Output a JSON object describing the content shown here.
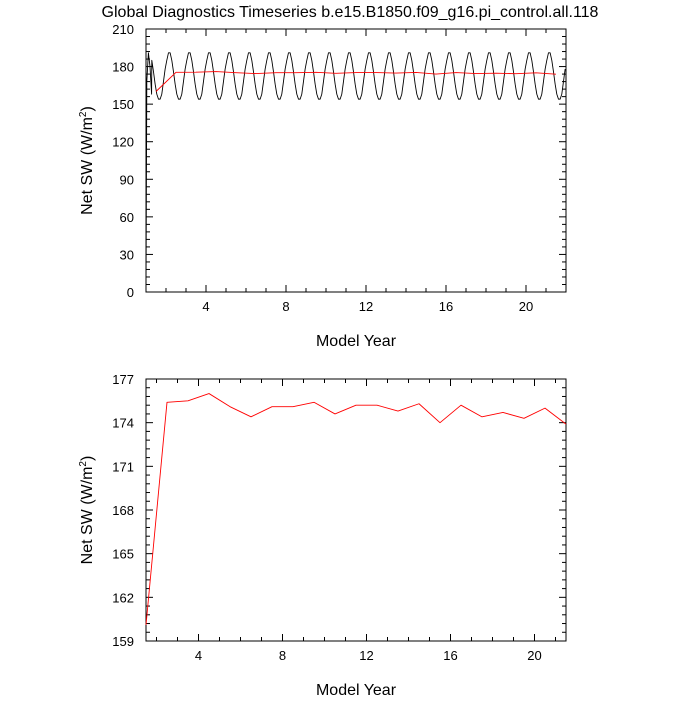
{
  "title": "Global Diagnostics Timeseries b.e15.B1850.f09_g16.pi_control.all.118",
  "chart_data": [
    {
      "type": "line",
      "xlabel": "Model Year",
      "ylabel": "Net SW (W/m",
      "ylabel_sup": "2",
      "ylabel_end": ")",
      "xlim": [
        1,
        22
      ],
      "ylim": [
        0,
        210
      ],
      "xticks": [
        4,
        8,
        12,
        16,
        20
      ],
      "yticks": [
        0,
        30,
        60,
        90,
        120,
        150,
        180,
        210
      ],
      "series": [
        {
          "color": "#000000",
          "cycle": {
            "x_start": 1.04,
            "x_end": 22,
            "period": 1,
            "values": [
              185,
              191,
              191,
              185,
              176,
              166,
              158,
              154,
              154,
              158,
              168,
              178
            ]
          },
          "x": [
            1,
            1.04,
            1.12,
            1.2,
            1.28
          ],
          "y": [
            0,
            168,
            191,
            180,
            158
          ]
        },
        {
          "color": "#ff0000",
          "x": [
            1.5,
            2.5,
            3.5,
            4.5,
            5.5,
            6.5,
            7.5,
            8.5,
            9.5,
            10.5,
            11.5,
            12.5,
            13.5,
            14.5,
            15.5,
            16.5,
            17.5,
            18.5,
            19.5,
            20.5,
            21.5
          ],
          "y": [
            160.1,
            175.4,
            175.5,
            176,
            175.1,
            174.4,
            175.1,
            175.1,
            175.4,
            174.6,
            175.2,
            175.2,
            174.8,
            175.3,
            174,
            175.2,
            174.4,
            174.7,
            174.3,
            175,
            173.9
          ]
        }
      ]
    },
    {
      "type": "line",
      "xlabel": "Model Year",
      "ylabel": "Net SW (W/m",
      "ylabel_sup": "2",
      "ylabel_end": ")",
      "xlim": [
        1.5,
        21.5
      ],
      "ylim": [
        159,
        177
      ],
      "xticks": [
        4,
        8,
        12,
        16,
        20
      ],
      "yticks": [
        159,
        162,
        165,
        168,
        171,
        174,
        177
      ],
      "series": [
        {
          "color": "#ff0000",
          "x": [
            1.5,
            2.5,
            3.5,
            4.5,
            5.5,
            6.5,
            7.5,
            8.5,
            9.5,
            10.5,
            11.5,
            12.5,
            13.5,
            14.5,
            15.5,
            16.5,
            17.5,
            18.5,
            19.5,
            20.5,
            21.5
          ],
          "y": [
            160.1,
            175.4,
            175.5,
            176,
            175.1,
            174.4,
            175.1,
            175.1,
            175.4,
            174.6,
            175.2,
            175.2,
            174.8,
            175.3,
            174,
            175.2,
            174.4,
            174.7,
            174.3,
            175,
            173.9
          ]
        }
      ]
    }
  ]
}
